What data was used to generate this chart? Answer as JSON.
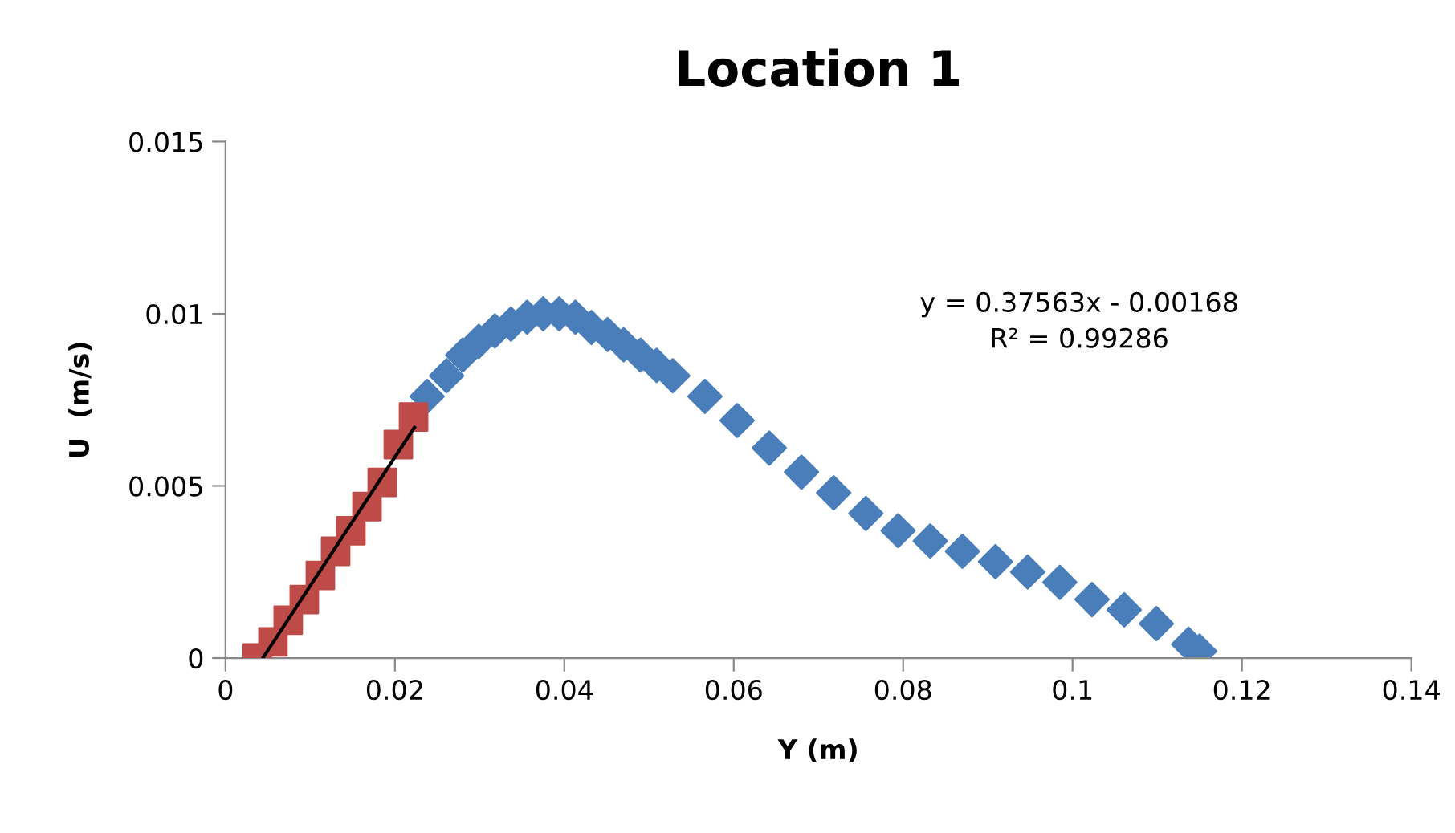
{
  "chart_data": {
    "type": "scatter",
    "title": "Location 1",
    "xlabel": "Y (m)",
    "ylabel": "U  (m/s)",
    "xlim": [
      0,
      0.14
    ],
    "xticks": [
      0,
      0.02,
      0.04,
      0.06,
      0.08,
      0.1,
      0.12,
      0.14
    ],
    "ylim": [
      0,
      0.015
    ],
    "yticks": [
      0,
      0.005,
      0.01,
      0.015
    ],
    "grid": false,
    "legend": false,
    "annotations": [
      "y = 0.37563x - 0.00168\nR² = 0.99286"
    ],
    "series": [
      {
        "marker": "diamond",
        "color": "#4a7ebb",
        "x": [
          0.0238,
          0.0261,
          0.028,
          0.0299,
          0.0318,
          0.0337,
          0.0356,
          0.0375,
          0.0394,
          0.0413,
          0.0432,
          0.0451,
          0.047,
          0.049,
          0.0509,
          0.0528,
          0.0566,
          0.0604,
          0.0642,
          0.068,
          0.0718,
          0.0756,
          0.0794,
          0.0832,
          0.087,
          0.0909,
          0.0947,
          0.0985,
          0.1023,
          0.1061,
          0.1099,
          0.1137,
          0.115
        ],
        "values": [
          0.0076,
          0.0082,
          0.0088,
          0.0092,
          0.0095,
          0.0097,
          0.0099,
          0.01,
          0.01,
          0.0099,
          0.0096,
          0.0094,
          0.0091,
          0.0088,
          0.0085,
          0.0082,
          0.0076,
          0.0069,
          0.0061,
          0.0054,
          0.0048,
          0.0042,
          0.0037,
          0.0034,
          0.0031,
          0.0028,
          0.0025,
          0.0022,
          0.0017,
          0.0014,
          0.001,
          0.0004,
          0.0002
        ]
      },
      {
        "marker": "square",
        "color": "#be4b48",
        "x": [
          0.00375,
          0.0056,
          0.0074,
          0.0093,
          0.0112,
          0.013,
          0.0148,
          0.0167,
          0.0185,
          0.0204,
          0.0222
        ],
        "values": [
          0,
          0.00047,
          0.0011,
          0.0017,
          0.0024,
          0.0031,
          0.0037,
          0.0044,
          0.0051,
          0.0062,
          0.007
        ]
      },
      {
        "type": "line",
        "marker": "none",
        "line_style": "solid",
        "color": "#000000",
        "x": [
          0.0044,
          0.0223
        ],
        "values": [
          0,
          0.0067
        ]
      }
    ]
  }
}
